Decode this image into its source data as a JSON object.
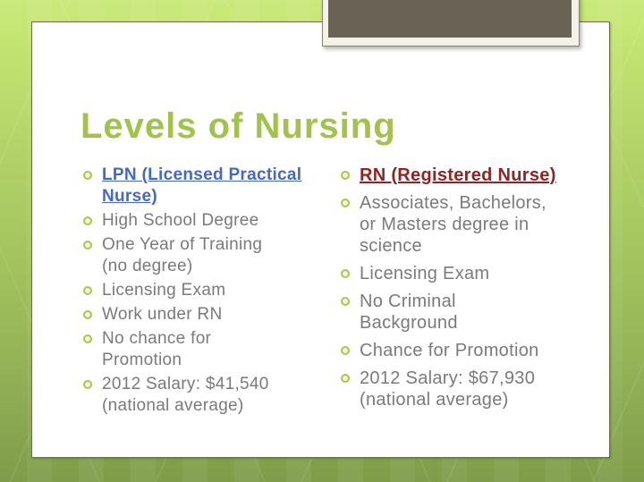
{
  "slide": {
    "title": "Levels of Nursing",
    "columns": [
      {
        "heading": "LPN (Licensed Practical\nNurse)",
        "heading_color": "#4368c6",
        "items": [
          "High School Degree",
          "One Year of Training\n(no degree)",
          "Licensing Exam",
          "Work under RN",
          "No chance for\nPromotion",
          "2012 Salary: $41,540\n(national average)"
        ]
      },
      {
        "heading": "RN (Registered Nurse)",
        "heading_color": "#8e2423",
        "items": [
          "Associates, Bachelors,\nor Masters degree in\nscience",
          "Licensing Exam",
          "No Criminal\nBackground",
          "Chance for Promotion",
          "2012 Salary: $67,930\n(national average)"
        ]
      }
    ]
  },
  "colors": {
    "title_green": "#a3c24c",
    "bullet_green": "#a6c84f",
    "body_gray": "#7a7a7a",
    "lpn_blue": "#4368c6",
    "rn_red": "#8e2423",
    "background_top": "#cbe97c",
    "background_bottom": "#7f9c4a",
    "photo_fill": "#6b6256",
    "photo_frame": "#f3f1e8"
  }
}
